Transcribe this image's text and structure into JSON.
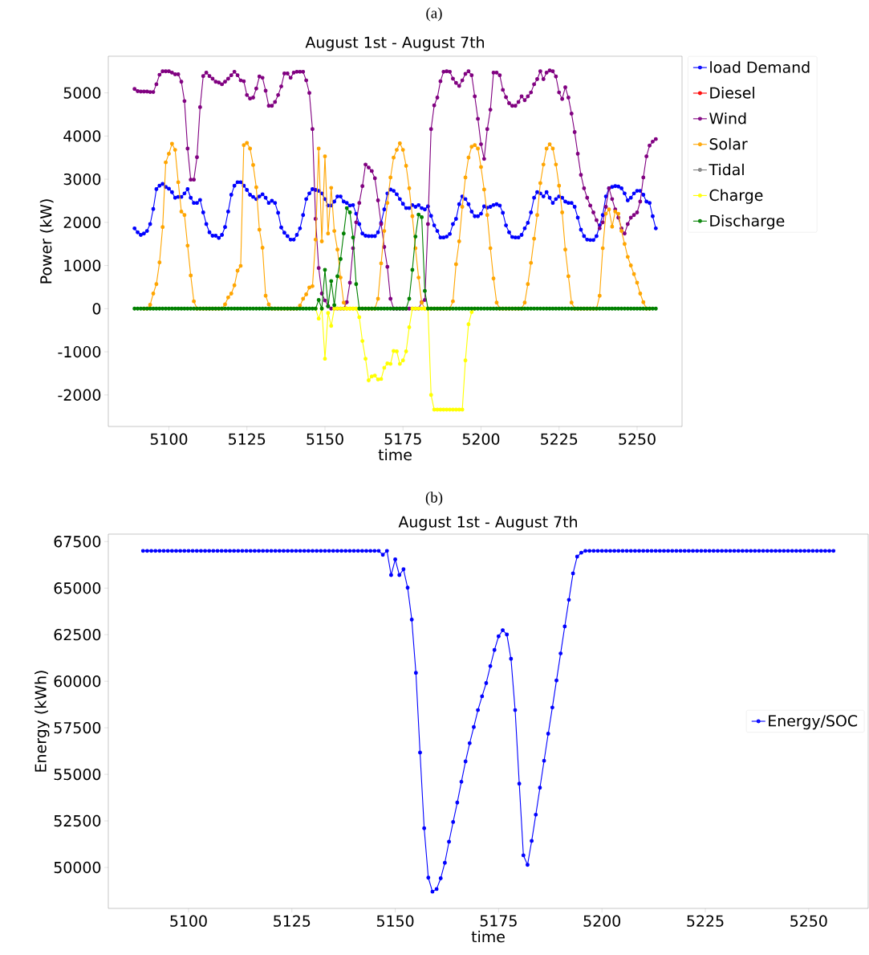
{
  "chart_data": [
    {
      "type": "line",
      "title": "August 1st - August 7th",
      "xlabel": "time",
      "ylabel": "Power (kW)",
      "annotations": [
        "(a)"
      ],
      "x": [
        5089,
        5090,
        5091,
        5092,
        5093,
        5094,
        5095,
        5096,
        5097,
        5098,
        5099,
        5100,
        5101,
        5102,
        5103,
        5104,
        5105,
        5106,
        5107,
        5108,
        5109,
        5110,
        5111,
        5112,
        5113,
        5114,
        5115,
        5116,
        5117,
        5118,
        5119,
        5120,
        5121,
        5122,
        5123,
        5124,
        5125,
        5126,
        5127,
        5128,
        5129,
        5130,
        5131,
        5132,
        5133,
        5134,
        5135,
        5136,
        5137,
        5138,
        5139,
        5140,
        5141,
        5142,
        5143,
        5144,
        5145,
        5146,
        5147,
        5148,
        5149,
        5150,
        5151,
        5152,
        5153,
        5154,
        5155,
        5156,
        5157,
        5158,
        5159,
        5160,
        5161,
        5162,
        5163,
        5164,
        5165,
        5166,
        5167,
        5168,
        5169,
        5170,
        5171,
        5172,
        5173,
        5174,
        5175,
        5176,
        5177,
        5178,
        5179,
        5180,
        5181,
        5182,
        5183,
        5184,
        5185,
        5186,
        5187,
        5188,
        5189,
        5190,
        5191,
        5192,
        5193,
        5194,
        5195,
        5196,
        5197,
        5198,
        5199,
        5200,
        5201,
        5202,
        5203,
        5204,
        5205,
        5206,
        5207,
        5208,
        5209,
        5210,
        5211,
        5212,
        5213,
        5214,
        5215,
        5216,
        5217,
        5218,
        5219,
        5220,
        5221,
        5222,
        5223,
        5224,
        5225,
        5226,
        5227,
        5228,
        5229,
        5230,
        5231,
        5232,
        5233,
        5234,
        5235,
        5236,
        5237,
        5238,
        5239,
        5240,
        5241,
        5242,
        5243,
        5244,
        5245,
        5246,
        5247,
        5248,
        5249,
        5250,
        5251,
        5252,
        5253,
        5254,
        5255,
        5256
      ],
      "series": [
        {
          "name": "load Demand",
          "color": "#0000ff",
          "values": [
            1860,
            1770,
            1710,
            1740,
            1800,
            1960,
            2310,
            2770,
            2850,
            2890,
            2820,
            2780,
            2700,
            2570,
            2590,
            2590,
            2670,
            2770,
            2570,
            2450,
            2450,
            2520,
            2230,
            1960,
            1770,
            1690,
            1690,
            1640,
            1710,
            1890,
            2250,
            2640,
            2850,
            2930,
            2930,
            2850,
            2750,
            2640,
            2590,
            2540,
            2600,
            2650,
            2570,
            2450,
            2500,
            2450,
            2220,
            1880,
            1760,
            1680,
            1600,
            1600,
            1710,
            1860,
            2170,
            2540,
            2670,
            2770,
            2750,
            2730,
            2670,
            2540,
            2390,
            2390,
            2480,
            2600,
            2600,
            2480,
            2450,
            2390,
            2400,
            2200,
            1960,
            1740,
            1690,
            1680,
            1680,
            1680,
            1770,
            1990,
            2300,
            2670,
            2760,
            2730,
            2650,
            2540,
            2430,
            2330,
            2330,
            2400,
            2360,
            2400,
            2330,
            2300,
            2370,
            2150,
            1930,
            1800,
            1650,
            1650,
            1670,
            1730,
            1960,
            2080,
            2420,
            2600,
            2540,
            2420,
            2250,
            2140,
            2140,
            2200,
            2370,
            2340,
            2360,
            2400,
            2420,
            2390,
            2220,
            1930,
            1770,
            1660,
            1650,
            1650,
            1710,
            1860,
            1990,
            2230,
            2570,
            2700,
            2670,
            2600,
            2700,
            2570,
            2450,
            2540,
            2600,
            2570,
            2480,
            2450,
            2450,
            2360,
            2110,
            1830,
            1680,
            1600,
            1590,
            1590,
            1680,
            1930,
            2170,
            2600,
            2790,
            2820,
            2840,
            2830,
            2790,
            2670,
            2510,
            2570,
            2670,
            2730,
            2730,
            2640,
            2480,
            2450,
            2140,
            1860
          ]
        },
        {
          "name": "Diesel",
          "color": "#ff0000",
          "values": [
            null,
            null,
            null,
            null,
            null,
            null,
            null,
            null,
            null,
            null,
            null,
            null,
            null,
            null,
            null,
            null,
            null,
            null,
            null,
            null,
            null,
            null,
            null,
            null,
            null,
            null,
            null,
            null,
            null,
            null,
            null,
            null,
            null,
            null,
            null,
            null,
            null,
            null,
            null,
            null,
            null,
            null,
            null,
            null,
            null,
            null,
            null,
            null,
            null,
            null,
            null,
            null,
            null,
            null,
            null,
            null,
            null,
            null,
            null,
            null,
            null,
            null,
            null,
            null,
            null,
            null,
            null,
            null,
            null,
            null,
            null,
            null,
            null,
            null,
            null,
            null,
            null,
            null,
            null,
            null,
            null,
            null,
            null,
            null,
            null,
            null,
            null,
            null,
            null,
            null,
            null,
            null,
            null,
            null,
            null,
            null,
            null,
            null,
            null,
            null,
            null,
            null,
            null,
            null,
            null,
            null,
            null,
            null,
            null,
            null,
            null,
            null,
            null,
            null,
            null,
            null,
            null,
            null,
            null,
            null,
            null,
            null,
            null,
            null,
            null,
            null,
            null,
            null,
            null,
            null,
            null,
            null,
            null,
            null,
            null,
            null,
            null,
            null,
            null,
            null,
            null,
            null,
            null,
            null,
            null,
            null,
            null,
            null,
            null,
            null,
            null,
            null,
            null,
            null,
            null,
            null,
            null,
            null,
            null,
            null,
            null,
            null,
            null,
            null,
            null,
            null,
            null,
            null
          ]
        },
        {
          "name": "Wind",
          "color": "#800080",
          "values": [
            5090,
            5040,
            5030,
            5030,
            5030,
            5020,
            5020,
            5200,
            5420,
            5500,
            5500,
            5500,
            5470,
            5430,
            5430,
            5260,
            4810,
            3710,
            2990,
            2990,
            3510,
            4670,
            5390,
            5470,
            5390,
            5330,
            5260,
            5240,
            5200,
            5260,
            5330,
            5410,
            5490,
            5410,
            5290,
            5270,
            4950,
            4870,
            4890,
            5100,
            5380,
            5350,
            5050,
            4700,
            4700,
            4790,
            4950,
            5150,
            5450,
            5450,
            5350,
            5470,
            5490,
            5490,
            5490,
            5290,
            5000,
            4160,
            2080,
            940,
            350,
            190,
            60,
            0,
            0,
            0,
            0,
            0,
            150,
            600,
            1400,
            2000,
            2450,
            2840,
            3340,
            3270,
            3190,
            3020,
            2510,
            1960,
            1430,
            970,
            230,
            0,
            0,
            0,
            0,
            0,
            0,
            0,
            0,
            0,
            150,
            200,
            1960,
            4160,
            4710,
            4890,
            5270,
            5490,
            5500,
            5490,
            5330,
            5230,
            5160,
            5290,
            5440,
            5500,
            5410,
            4920,
            4400,
            3810,
            3470,
            4160,
            4610,
            5470,
            5470,
            5410,
            5070,
            4900,
            4760,
            4700,
            4700,
            4790,
            4920,
            4830,
            4920,
            5010,
            5200,
            5320,
            5500,
            5320,
            5470,
            5520,
            5500,
            5380,
            5010,
            4860,
            5130,
            4890,
            4520,
            4090,
            3590,
            3100,
            2790,
            2570,
            2390,
            2230,
            2050,
            1860,
            2000,
            2360,
            2790,
            2540,
            2300,
            2110,
            1860,
            1740,
            1960,
            2110,
            2170,
            2230,
            2480,
            3040,
            3530,
            3780,
            3870,
            3930
          ]
        },
        {
          "name": "Solar",
          "color": "#ffa500",
          "values": [
            null,
            null,
            null,
            0,
            0,
            90,
            350,
            570,
            1070,
            1890,
            3390,
            3590,
            3820,
            3680,
            2930,
            2250,
            2170,
            1460,
            770,
            170,
            0,
            0,
            0,
            0,
            0,
            0,
            0,
            0,
            0,
            100,
            260,
            350,
            540,
            880,
            990,
            3790,
            3840,
            3710,
            3330,
            2810,
            1830,
            1410,
            300,
            100,
            0,
            0,
            0,
            0,
            0,
            0,
            0,
            0,
            0,
            70,
            230,
            330,
            490,
            520,
            1600,
            3710,
            1560,
            3530,
            1740,
            2800,
            1800,
            1370,
            720,
            140,
            0,
            0,
            0,
            0,
            0,
            0,
            0,
            0,
            0,
            0,
            230,
            1050,
            1800,
            2450,
            3040,
            3500,
            3680,
            3830,
            3680,
            3310,
            2790,
            2140,
            1400,
            720,
            140,
            0,
            0,
            0,
            0,
            0,
            0,
            0,
            0,
            0,
            170,
            1030,
            1560,
            2360,
            3040,
            3500,
            3750,
            3790,
            3710,
            3280,
            2760,
            2170,
            1400,
            700,
            140,
            0,
            0,
            0,
            0,
            0,
            0,
            0,
            0,
            140,
            570,
            1060,
            1620,
            2170,
            2910,
            3340,
            3710,
            3810,
            3710,
            3340,
            2850,
            2230,
            1370,
            750,
            140,
            0,
            0,
            0,
            0,
            0,
            0,
            0,
            0,
            300,
            1400,
            2200,
            2300,
            1900,
            2250,
            2200,
            1800,
            1500,
            1200,
            1000,
            800,
            600,
            350,
            150,
            0,
            0,
            null,
            null
          ]
        },
        {
          "name": "Tidal",
          "color": "#808080",
          "values": [
            null,
            null,
            null,
            null,
            null,
            null,
            null,
            null,
            null,
            null,
            null,
            null,
            null,
            null,
            null,
            null,
            null,
            null,
            null,
            null,
            null,
            null,
            null,
            null,
            null,
            null,
            null,
            null,
            null,
            null,
            null,
            null,
            null,
            null,
            null,
            null,
            null,
            null,
            null,
            null,
            null,
            null,
            null,
            null,
            null,
            null,
            null,
            null,
            null,
            null,
            null,
            null,
            null,
            null,
            null,
            null,
            null,
            null,
            null,
            null,
            null,
            null,
            null,
            null,
            null,
            null,
            null,
            null,
            null,
            null,
            null,
            null,
            null,
            null,
            null,
            null,
            null,
            null,
            null,
            null,
            null,
            null,
            null,
            null,
            null,
            null,
            null,
            null,
            null,
            null,
            null,
            null,
            null,
            null,
            null,
            null,
            null,
            null,
            null,
            null,
            null,
            null,
            null,
            null,
            null,
            null,
            null,
            null,
            null,
            null,
            null,
            null,
            null,
            null,
            null,
            null,
            null,
            null,
            null,
            null,
            null,
            null,
            null,
            null,
            null,
            null,
            null,
            null,
            null,
            null,
            null,
            null,
            null,
            null,
            null,
            null,
            null,
            null,
            null,
            null,
            null,
            null,
            null,
            null,
            null,
            null,
            null,
            null,
            null,
            null,
            null,
            null,
            null,
            null,
            null,
            null,
            null,
            null,
            null,
            null,
            null,
            null,
            null,
            null,
            null,
            null,
            null,
            null
          ]
        },
        {
          "name": "Charge",
          "color": "#ffff00",
          "values": [
            null,
            null,
            null,
            null,
            null,
            null,
            null,
            null,
            null,
            null,
            null,
            null,
            null,
            null,
            null,
            null,
            null,
            null,
            null,
            null,
            null,
            null,
            null,
            null,
            null,
            null,
            null,
            null,
            null,
            null,
            null,
            null,
            null,
            null,
            null,
            null,
            null,
            null,
            null,
            null,
            null,
            null,
            null,
            null,
            null,
            null,
            null,
            null,
            null,
            null,
            null,
            null,
            null,
            null,
            null,
            null,
            null,
            null,
            0,
            -230,
            0,
            -1160,
            -100,
            -400,
            0,
            0,
            0,
            0,
            0,
            0,
            0,
            0,
            -200,
            -750,
            -1160,
            -1660,
            -1570,
            -1550,
            -1640,
            -1630,
            -1370,
            -1270,
            -1280,
            -980,
            -990,
            -1280,
            -1200,
            -990,
            -430,
            0,
            0,
            0,
            0,
            0,
            0,
            -2000,
            -2340,
            -2340,
            -2340,
            -2340,
            -2340,
            -2340,
            -2340,
            -2340,
            -2340,
            -2340,
            -1200,
            -360,
            -80,
            0,
            null,
            null,
            null,
            null,
            null,
            null,
            null,
            null,
            null,
            null,
            null,
            null,
            null,
            null,
            null,
            null,
            null,
            null,
            null,
            null,
            null,
            null,
            null,
            null,
            null,
            null,
            null,
            null,
            null,
            null,
            null,
            null,
            null,
            null,
            null,
            null,
            null,
            null,
            null,
            null,
            null,
            null,
            null,
            null,
            null,
            null,
            null,
            null,
            null,
            null,
            null,
            null,
            null,
            null,
            null,
            null,
            null,
            null
          ]
        },
        {
          "name": "Discharge",
          "color": "#008000",
          "values": [
            0,
            0,
            0,
            0,
            0,
            0,
            0,
            0,
            0,
            0,
            0,
            0,
            0,
            0,
            0,
            0,
            0,
            0,
            0,
            0,
            0,
            0,
            0,
            0,
            0,
            0,
            0,
            0,
            0,
            0,
            0,
            0,
            0,
            0,
            0,
            0,
            0,
            0,
            0,
            0,
            0,
            0,
            0,
            0,
            0,
            0,
            0,
            0,
            0,
            0,
            0,
            0,
            0,
            0,
            0,
            0,
            0,
            0,
            0,
            200,
            0,
            900,
            50,
            640,
            80,
            750,
            1150,
            1740,
            2330,
            2230,
            1650,
            570,
            0,
            0,
            0,
            0,
            0,
            0,
            0,
            0,
            0,
            0,
            0,
            0,
            0,
            0,
            0,
            0,
            230,
            900,
            1670,
            2180,
            2120,
            410,
            0,
            0,
            0,
            0,
            0,
            0,
            0,
            0,
            0,
            0,
            0,
            0,
            0,
            0,
            0,
            0,
            0,
            0,
            0,
            0,
            0,
            0,
            0,
            0,
            0,
            0,
            0,
            0,
            0,
            0,
            0,
            0,
            0,
            0,
            0,
            0,
            0,
            0,
            0,
            0,
            0,
            0,
            0,
            0,
            0,
            0,
            0,
            0,
            0,
            0,
            0,
            0,
            0,
            0,
            0,
            0,
            0,
            0,
            0,
            0,
            0,
            0,
            0,
            0,
            0,
            0,
            0,
            0,
            0,
            0,
            0,
            0,
            0,
            0
          ]
        }
      ],
      "xlim": [
        5080.6,
        5264.4
      ],
      "ylim": [
        -2730,
        5850
      ],
      "xticks": [
        5100,
        5125,
        5150,
        5175,
        5200,
        5225,
        5250
      ],
      "yticks": [
        -2000,
        -1000,
        0,
        1000,
        2000,
        3000,
        4000,
        5000
      ],
      "legend": "top right",
      "marker": "circle"
    },
    {
      "type": "line",
      "title": "August 1st - August 7th",
      "xlabel": "time",
      "ylabel": "Energy (kWh)",
      "annotations": [
        "(b)"
      ],
      "x": [
        5089,
        5090,
        5091,
        5092,
        5093,
        5094,
        5095,
        5096,
        5097,
        5098,
        5099,
        5100,
        5101,
        5102,
        5103,
        5104,
        5105,
        5106,
        5107,
        5108,
        5109,
        5110,
        5111,
        5112,
        5113,
        5114,
        5115,
        5116,
        5117,
        5118,
        5119,
        5120,
        5121,
        5122,
        5123,
        5124,
        5125,
        5126,
        5127,
        5128,
        5129,
        5130,
        5131,
        5132,
        5133,
        5134,
        5135,
        5136,
        5137,
        5138,
        5139,
        5140,
        5141,
        5142,
        5143,
        5144,
        5145,
        5146,
        5147,
        5148,
        5149,
        5150,
        5151,
        5152,
        5153,
        5154,
        5155,
        5156,
        5157,
        5158,
        5159,
        5160,
        5161,
        5162,
        5163,
        5164,
        5165,
        5166,
        5167,
        5168,
        5169,
        5170,
        5171,
        5172,
        5173,
        5174,
        5175,
        5176,
        5177,
        5178,
        5179,
        5180,
        5181,
        5182,
        5183,
        5184,
        5185,
        5186,
        5187,
        5188,
        5189,
        5190,
        5191,
        5192,
        5193,
        5194,
        5195,
        5196,
        5197,
        5198,
        5199,
        5200,
        5201,
        5202,
        5203,
        5204,
        5205,
        5206,
        5207,
        5208,
        5209,
        5210,
        5211,
        5212,
        5213,
        5214,
        5215,
        5216,
        5217,
        5218,
        5219,
        5220,
        5221,
        5222,
        5223,
        5224,
        5225,
        5226,
        5227,
        5228,
        5229,
        5230,
        5231,
        5232,
        5233,
        5234,
        5235,
        5236,
        5237,
        5238,
        5239,
        5240,
        5241,
        5242,
        5243,
        5244,
        5245,
        5246,
        5247,
        5248,
        5249,
        5250,
        5251,
        5252,
        5253,
        5254,
        5255,
        5256
      ],
      "series": [
        {
          "name": "Energy/SOC",
          "color": "#0000ff",
          "values": [
            67000,
            67000,
            67000,
            67000,
            67000,
            67000,
            67000,
            67000,
            67000,
            67000,
            67000,
            67000,
            67000,
            67000,
            67000,
            67000,
            67000,
            67000,
            67000,
            67000,
            67000,
            67000,
            67000,
            67000,
            67000,
            67000,
            67000,
            67000,
            67000,
            67000,
            67000,
            67000,
            67000,
            67000,
            67000,
            67000,
            67000,
            67000,
            67000,
            67000,
            67000,
            67000,
            67000,
            67000,
            67000,
            67000,
            67000,
            67000,
            67000,
            67000,
            67000,
            67000,
            67000,
            67000,
            67000,
            67000,
            67000,
            67000,
            66790,
            67000,
            65700,
            66540,
            65700,
            66010,
            65020,
            63310,
            60450,
            56170,
            52100,
            49450,
            48700,
            48840,
            49420,
            50250,
            51380,
            52440,
            53480,
            54600,
            55690,
            56670,
            57540,
            58450,
            59190,
            59900,
            60810,
            61680,
            62410,
            62740,
            62510,
            61200,
            58450,
            54500,
            50650,
            50140,
            51420,
            52830,
            54280,
            55730,
            57180,
            58590,
            60040,
            61490,
            62940,
            64370,
            65790,
            66690,
            66900,
            67000,
            67000,
            67000,
            67000,
            67000,
            67000,
            67000,
            67000,
            67000,
            67000,
            67000,
            67000,
            67000,
            67000,
            67000,
            67000,
            67000,
            67000,
            67000,
            67000,
            67000,
            67000,
            67000,
            67000,
            67000,
            67000,
            67000,
            67000,
            67000,
            67000,
            67000,
            67000,
            67000,
            67000,
            67000,
            67000,
            67000,
            67000,
            67000,
            67000,
            67000,
            67000,
            67000,
            67000,
            67000,
            67000,
            67000,
            67000,
            67000,
            67000,
            67000,
            67000,
            67000,
            67000,
            67000,
            67000,
            67000,
            67000,
            67000,
            67000,
            67000
          ]
        }
      ],
      "xlim": [
        5080.6,
        5264.4
      ],
      "ylim": [
        47800,
        67900
      ],
      "xticks": [
        5100,
        5125,
        5150,
        5175,
        5200,
        5225,
        5250
      ],
      "yticks": [
        50000,
        52500,
        55000,
        57500,
        60000,
        62500,
        65000,
        67500
      ],
      "legend": "right",
      "marker": "circle"
    }
  ]
}
